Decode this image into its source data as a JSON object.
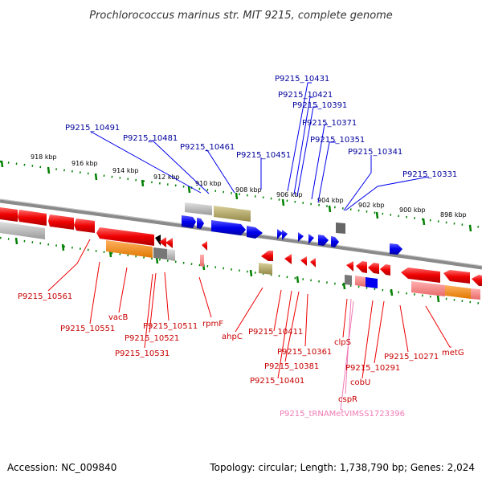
{
  "title": "Prochlorococcus marinus str. MIT 9215, complete genome",
  "footer": {
    "accession": "Accession: NC_009840",
    "summary": "Topology: circular; Length: 1,738,790 bp; Genes: 2,024"
  },
  "scale_labels": [
    "918 kbp",
    "916 kbp",
    "914 kbp",
    "912 kbp",
    "910 kbp",
    "908 kbp",
    "906 kbp",
    "904 kbp",
    "902 kbp",
    "900 kbp",
    "898 kbp"
  ],
  "labels_top": [
    "P9215_10431",
    "P9215_10421",
    "P9215_10391",
    "P9215_10371",
    "P9215_10351",
    "P9215_10341",
    "P9215_10331",
    "P9215_10491",
    "P9215_10481",
    "P9215_10461",
    "P9215_10451"
  ],
  "labels_bottom": [
    "P9215_10561",
    "P9215_10551",
    "vacB",
    "P9215_10511",
    "P9215_10521",
    "P9215_10531",
    "rpmF",
    "ahpC",
    "P9215_10411",
    "P9215_10361",
    "P9215_10381",
    "P9215_10401",
    "clpS",
    "P9215_10291",
    "cobU",
    "cspR",
    "P9215_10271",
    "metG"
  ],
  "label_trna": "P9215_tRNAMetVIMSS1723396",
  "colors": {
    "forward": "#0000ee",
    "reverse": "#ee0000",
    "blue_label": "#00009c",
    "red_label": "#c80000",
    "trna": "#f07ab4",
    "backbone": "#8a8a8a",
    "tick": "#008000",
    "khaki": "#b5a86a",
    "orange": "#ff8c00"
  }
}
